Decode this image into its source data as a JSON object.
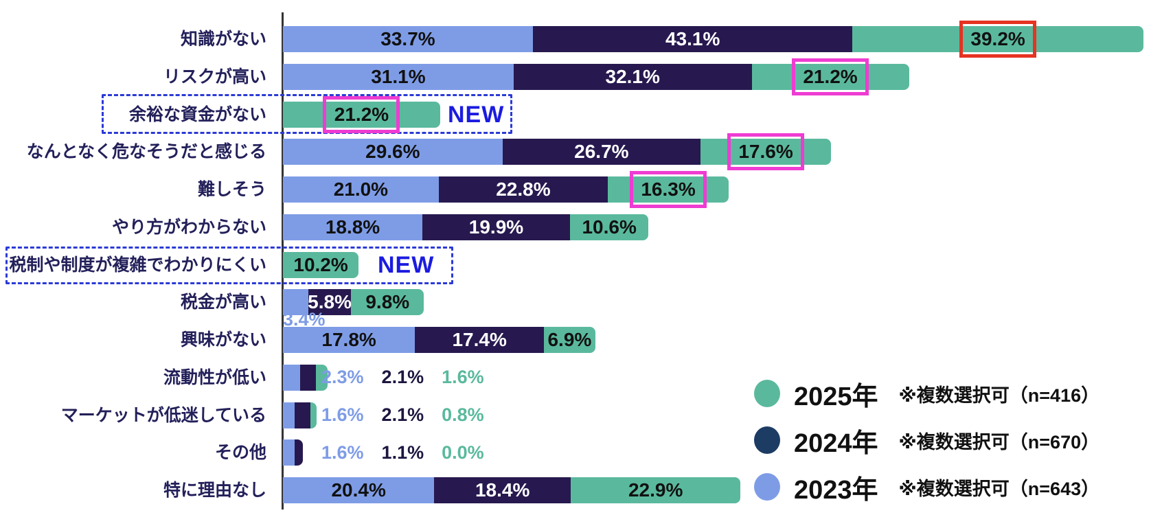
{
  "chart_data": {
    "type": "bar",
    "orientation": "horizontal-stacked",
    "value_unit": "%",
    "title": "",
    "categories": [
      "知識がない",
      "リスクが高い",
      "余裕な資金がない",
      "なんとなく危なそうだと感じる",
      "難しそう",
      "やり方がわからない",
      "税制や制度が複雑でわかりにくい",
      "税金が高い",
      "興味がない",
      "流動性が低い",
      "マーケットが低迷している",
      "その他",
      "特に理由なし"
    ],
    "series": [
      {
        "key": "y2023",
        "name": "2023年",
        "color": "#7e9ce6",
        "label_color_inside": "#111111",
        "values": [
          33.7,
          31.1,
          null,
          29.6,
          21.0,
          18.8,
          null,
          3.4,
          17.8,
          2.3,
          1.6,
          1.6,
          20.4
        ]
      },
      {
        "key": "y2024",
        "name": "2024年",
        "color": "#27194f",
        "label_color_inside": "#ffffff",
        "values": [
          43.1,
          32.1,
          null,
          26.7,
          22.8,
          19.9,
          null,
          5.8,
          17.4,
          2.1,
          2.1,
          1.1,
          18.4
        ]
      },
      {
        "key": "y2025",
        "name": "2025年",
        "color": "#5ab99d",
        "label_color_inside": "#111111",
        "values": [
          39.2,
          21.2,
          21.2,
          17.6,
          16.3,
          10.6,
          10.2,
          9.8,
          6.9,
          1.6,
          0.8,
          0.0,
          22.9
        ]
      }
    ],
    "row_label_mode": [
      "inside",
      "inside",
      "inside",
      "inside",
      "inside",
      "inside",
      "inside",
      "mixed",
      "inside",
      "after",
      "after",
      "after",
      "inside"
    ],
    "new_label": "NEW",
    "new_rows": [
      2,
      6
    ],
    "highlights": [
      {
        "row": 0,
        "series": "y2025",
        "style": "red"
      },
      {
        "row": 1,
        "series": "y2025",
        "style": "magenta"
      },
      {
        "row": 2,
        "series": "y2025",
        "style": "magenta"
      },
      {
        "row": 3,
        "series": "y2025",
        "style": "magenta"
      },
      {
        "row": 4,
        "series": "y2025",
        "style": "magenta"
      }
    ],
    "legend_position": "bottom-right",
    "xlim": [
      0,
      120
    ],
    "grid": false
  },
  "legend": {
    "items": [
      {
        "label": "2025年",
        "note": "※複数選択可（n=416）",
        "color": "#5ab99d"
      },
      {
        "label": "2024年",
        "note": "※複数選択可（n=670）",
        "color": "#1d3c64"
      },
      {
        "label": "2023年",
        "note": "※複数選択可（n=643）",
        "color": "#7e9ce6"
      }
    ]
  },
  "colors": {
    "highlight_red": "#e63322",
    "highlight_magenta": "#ee3cd2",
    "new_blue": "#1b1be0",
    "dashed_box_blue": "#2b3ad6",
    "axis": "#333333",
    "category_text": "#23205a"
  }
}
